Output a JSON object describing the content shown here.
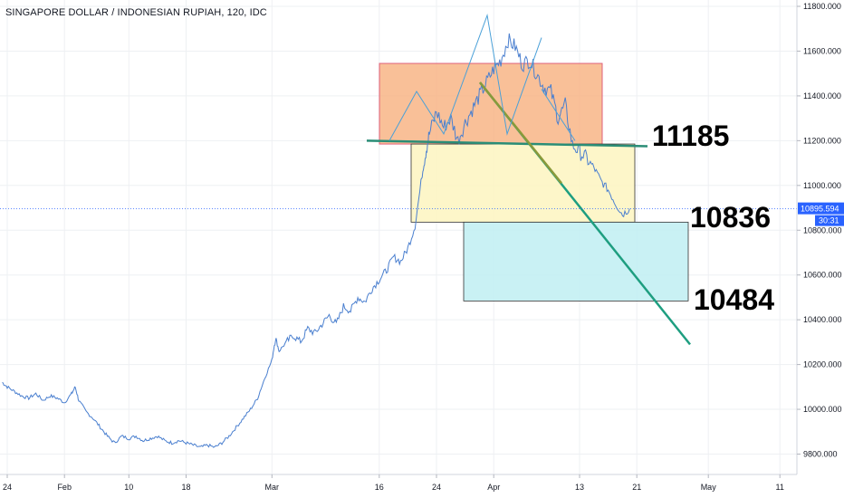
{
  "chart_data": {
    "type": "line",
    "title": "SINGAPORE DOLLAR / INDONESIAN RUPIAH, 120, IDC",
    "ylim": [
      9650,
      11850
    ],
    "y_ticks": [
      9800,
      10000,
      10200,
      10400,
      10600,
      10800,
      11000,
      11200,
      11400,
      11600,
      11800
    ],
    "y_tick_labels": [
      "9800.000",
      "10000.000",
      "10200.000",
      "10400.000",
      "10600.000",
      "10800.000",
      "11000.000",
      "11200.000",
      "11400.000",
      "11600.000",
      "11800.000"
    ],
    "x_ticks": [
      {
        "label": "24",
        "d": -1
      },
      {
        "label": "Feb",
        "d": 7
      },
      {
        "label": "10",
        "d": 16
      },
      {
        "label": "18",
        "d": 24
      },
      {
        "label": "Mar",
        "d": 36
      },
      {
        "label": "16",
        "d": 51
      },
      {
        "label": "24",
        "d": 59
      },
      {
        "label": "Apr",
        "d": 67
      },
      {
        "label": "13",
        "d": 79
      },
      {
        "label": "21",
        "d": 87
      },
      {
        "label": "May",
        "d": 97
      },
      {
        "label": "11",
        "d": 107
      }
    ],
    "x_range_days": [
      -1.7,
      110
    ],
    "series": [
      {
        "color": "#4a7fcf",
        "points": [
          [
            -1.7,
            10120
          ],
          [
            -1,
            10100
          ],
          [
            0,
            10080
          ],
          [
            1,
            10060
          ],
          [
            2,
            10050
          ],
          [
            3,
            10070
          ],
          [
            4,
            10040
          ],
          [
            5,
            10060
          ],
          [
            6,
            10050
          ],
          [
            7,
            10030
          ],
          [
            8,
            10070
          ],
          [
            8.5,
            10100
          ],
          [
            9,
            10040
          ],
          [
            10,
            9990
          ],
          [
            11,
            9960
          ],
          [
            12,
            9920
          ],
          [
            13,
            9880
          ],
          [
            14,
            9850
          ],
          [
            15,
            9880
          ],
          [
            16,
            9870
          ],
          [
            17,
            9880
          ],
          [
            18,
            9860
          ],
          [
            19,
            9870
          ],
          [
            20,
            9880
          ],
          [
            21,
            9860
          ],
          [
            22,
            9850
          ],
          [
            23,
            9860
          ],
          [
            24,
            9850
          ],
          [
            25,
            9840
          ],
          [
            26,
            9830
          ],
          [
            27,
            9840
          ],
          [
            28,
            9830
          ],
          [
            29,
            9850
          ],
          [
            30,
            9880
          ],
          [
            31,
            9920
          ],
          [
            32,
            9960
          ],
          [
            33,
            10000
          ],
          [
            34,
            10050
          ],
          [
            35,
            10140
          ],
          [
            36,
            10220
          ],
          [
            36.5,
            10320
          ],
          [
            37,
            10260
          ],
          [
            38,
            10300
          ],
          [
            39,
            10330
          ],
          [
            40,
            10300
          ],
          [
            41,
            10360
          ],
          [
            42,
            10340
          ],
          [
            43,
            10380
          ],
          [
            44,
            10420
          ],
          [
            45,
            10380
          ],
          [
            46,
            10460
          ],
          [
            47,
            10440
          ],
          [
            48,
            10500
          ],
          [
            49,
            10480
          ],
          [
            50,
            10540
          ],
          [
            51,
            10580
          ],
          [
            52,
            10620
          ],
          [
            53,
            10680
          ],
          [
            54,
            10660
          ],
          [
            55,
            10720
          ],
          [
            56,
            10820
          ],
          [
            57,
            11050
          ],
          [
            57.5,
            11150
          ],
          [
            58,
            11230
          ],
          [
            59,
            11330
          ],
          [
            60,
            11260
          ],
          [
            61,
            11300
          ],
          [
            62,
            11200
          ],
          [
            63,
            11280
          ],
          [
            64,
            11340
          ],
          [
            65,
            11400
          ],
          [
            66,
            11460
          ],
          [
            67,
            11520
          ],
          [
            68,
            11560
          ],
          [
            69,
            11650
          ],
          [
            70,
            11620
          ],
          [
            71,
            11540
          ],
          [
            72,
            11560
          ],
          [
            73,
            11500
          ],
          [
            74,
            11440
          ],
          [
            75,
            11420
          ],
          [
            76,
            11300
          ],
          [
            77,
            11360
          ],
          [
            78,
            11180
          ],
          [
            79,
            11150
          ],
          [
            80,
            11120
          ],
          [
            81,
            11080
          ],
          [
            82,
            11020
          ],
          [
            83,
            10980
          ],
          [
            84,
            10920
          ],
          [
            85,
            10870
          ],
          [
            86,
            10896
          ]
        ]
      }
    ],
    "last_price": "10895.594",
    "countdown": "30:31",
    "annotations": [
      {
        "text": "11185",
        "value": 11185
      },
      {
        "text": "10836",
        "value": 10836
      },
      {
        "text": "10484",
        "value": 10484
      }
    ],
    "colors": {
      "line": "#4a7fcf",
      "resistance_box": "#f8b07e",
      "yellow_box": "#fdf5c0",
      "blue_box": "#bfeef2",
      "trend_line": "#1e9e80",
      "accent": "#2962ff"
    }
  }
}
